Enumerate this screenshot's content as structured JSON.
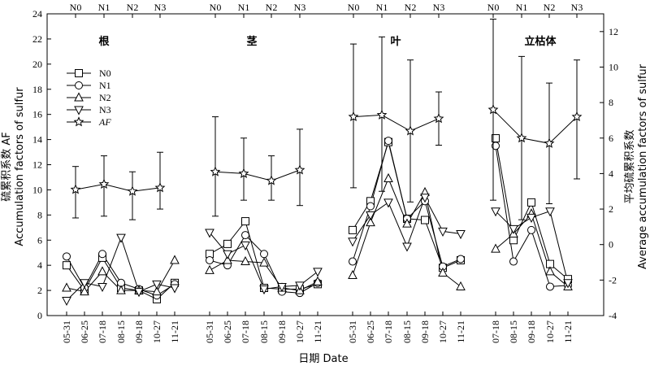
{
  "chart_data": {
    "type": "line",
    "xlabel": "日期  Date",
    "ylabel_left": [
      "硫累积系数 AF",
      "Accumulation factors of sulfur"
    ],
    "ylabel_right": [
      "平均硫累积系数",
      "Average accumulation factors of sulfur"
    ],
    "ylim_left": [
      0,
      24
    ],
    "yticks_left": [
      0,
      2,
      4,
      6,
      8,
      10,
      12,
      14,
      16,
      18,
      20,
      22,
      24
    ],
    "ylim_right": [
      -4,
      13
    ],
    "yticks_right": [
      -4,
      -2,
      0,
      2,
      4,
      6,
      8,
      10,
      12
    ],
    "grid": false,
    "legend": {
      "placement": "top-left",
      "entries": [
        {
          "label": "N0",
          "marker": "square"
        },
        {
          "label": "N1",
          "marker": "circle"
        },
        {
          "label": "N2",
          "marker": "triangle-up"
        },
        {
          "label": "N3",
          "marker": "triangle-down"
        },
        {
          "label": "AF",
          "marker": "star",
          "italic": true
        }
      ]
    },
    "panels": [
      {
        "title": "根",
        "dates": [
          "05-31",
          "06-25",
          "07-18",
          "08-15",
          "09-18",
          "10-27",
          "11-21"
        ],
        "series": [
          {
            "name": "N0",
            "values": [
              4.0,
              2.0,
              4.6,
              2.2,
              2.0,
              1.3,
              2.6
            ]
          },
          {
            "name": "N1",
            "values": [
              4.7,
              2.2,
              4.9,
              2.6,
              2.1,
              1.6,
              2.5
            ]
          },
          {
            "name": "N2",
            "values": [
              2.2,
              1.9,
              3.5,
              2.0,
              2.0,
              1.9,
              4.4
            ]
          },
          {
            "name": "N3",
            "values": [
              1.2,
              2.6,
              2.3,
              6.2,
              1.9,
              2.5,
              2.2
            ]
          }
        ],
        "af": {
          "positions": [
            "N0",
            "N1",
            "N2",
            "N3"
          ],
          "values": [
            3.1,
            3.4,
            3.0,
            3.2
          ],
          "err_low": [
            1.5,
            1.6,
            1.4,
            2.0
          ],
          "err_high": [
            4.4,
            5.0,
            4.1,
            5.2
          ]
        }
      },
      {
        "title": "茎",
        "dates": [
          "05-31",
          "06-25",
          "07-18",
          "08-15",
          "09-18",
          "10-27",
          "11-21"
        ],
        "series": [
          {
            "name": "N0",
            "values": [
              4.9,
              5.7,
              7.5,
              2.2,
              2.1,
              2.1,
              2.5
            ]
          },
          {
            "name": "N1",
            "values": [
              4.4,
              4.0,
              6.4,
              4.9,
              1.9,
              1.8,
              2.6
            ]
          },
          {
            "name": "N2",
            "values": [
              3.6,
              4.4,
              4.3,
              4.2,
              2.2,
              2.0,
              2.7
            ]
          },
          {
            "name": "N3",
            "values": [
              6.6,
              4.9,
              5.6,
              2.1,
              2.3,
              2.4,
              3.5
            ]
          }
        ],
        "af": {
          "positions": [
            "N0",
            "N1",
            "N2",
            "N3"
          ],
          "values": [
            4.1,
            4.0,
            3.6,
            4.2
          ],
          "err_low": [
            1.6,
            2.5,
            2.5,
            2.2
          ],
          "err_high": [
            7.2,
            6.0,
            5.0,
            6.5
          ]
        }
      },
      {
        "title": "叶",
        "dates": [
          "05-31",
          "06-25",
          "07-18",
          "08-15",
          "09-18",
          "10-27",
          "11-21"
        ],
        "series": [
          {
            "name": "N0",
            "values": [
              6.8,
              9.1,
              13.8,
              7.7,
              7.6,
              3.8,
              4.4
            ]
          },
          {
            "name": "N1",
            "values": [
              4.3,
              8.7,
              13.9,
              7.7,
              9.1,
              3.9,
              4.5
            ]
          },
          {
            "name": "N2",
            "values": [
              3.2,
              7.4,
              10.9,
              7.3,
              9.8,
              3.4,
              2.3
            ]
          },
          {
            "name": "N3",
            "values": [
              5.9,
              8.0,
              9.0,
              5.5,
              9.4,
              6.7,
              6.5
            ]
          }
        ],
        "af": {
          "positions": [
            "N0",
            "N1",
            "N2",
            "N3"
          ],
          "values": [
            7.2,
            7.3,
            6.4,
            7.1
          ],
          "err_low": [
            3.2,
            3.0,
            2.4,
            5.6
          ],
          "err_high": [
            11.3,
            11.7,
            10.4,
            8.6
          ]
        }
      },
      {
        "title": "立枯体",
        "dates": [
          "07-18",
          "08-15",
          "09-18",
          "10-27",
          "11-21"
        ],
        "series": [
          {
            "name": "N0",
            "values": [
              14.1,
              6.0,
              9.0,
              4.1,
              2.9
            ]
          },
          {
            "name": "N1",
            "values": [
              13.5,
              4.3,
              6.8,
              2.3,
              2.4
            ]
          },
          {
            "name": "N2",
            "values": [
              5.3,
              6.5,
              8.1,
              3.5,
              2.3
            ]
          },
          {
            "name": "N3",
            "values": [
              8.3,
              6.9,
              7.8,
              8.3,
              2.6
            ]
          }
        ],
        "af": {
          "positions": [
            "N0",
            "N1",
            "N2",
            "N3"
          ],
          "values": [
            7.6,
            6.0,
            5.7,
            7.2
          ],
          "err_low": [
            2.5,
            1.4,
            2.3,
            3.7
          ],
          "err_high": [
            12.7,
            10.6,
            9.1,
            10.4
          ]
        }
      }
    ]
  }
}
